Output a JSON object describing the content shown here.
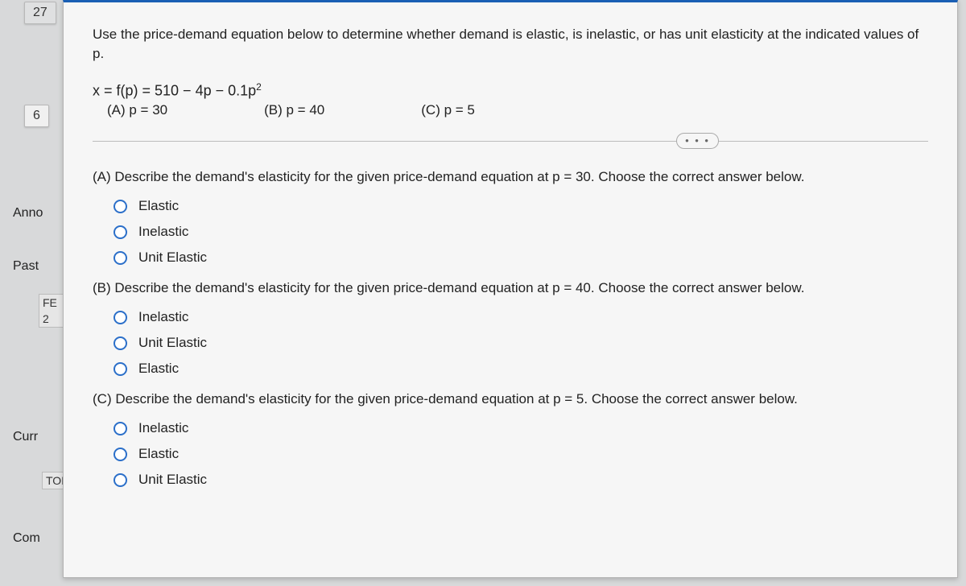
{
  "left": {
    "tab27": "27",
    "tab6": "6",
    "ann": "Anno",
    "past": "Past",
    "fe": "FE",
    "fe2": "2",
    "curr": "Curr",
    "tod": "TOD",
    "com": "Com"
  },
  "main": {
    "prompt": "Use the price-demand equation below to determine whether demand is elastic, is inelastic, or has unit elasticity at the indicated values of p.",
    "equation_prefix": "x = f(p) = 510 − 4p − 0.1p",
    "equation_exp": "2",
    "partA": "(A) p = 30",
    "partB": "(B) p = 40",
    "partC": "(C) p = 5",
    "dots": "• • •"
  },
  "qA": {
    "text": "(A) Describe the demand's elasticity for the given price-demand equation at p = 30. Choose the correct answer below.",
    "o1": "Elastic",
    "o2": "Inelastic",
    "o3": "Unit Elastic"
  },
  "qB": {
    "text": "(B) Describe the demand's elasticity for the given price-demand equation at p = 40. Choose the correct answer below.",
    "o1": "Inelastic",
    "o2": "Unit Elastic",
    "o3": "Elastic"
  },
  "qC": {
    "text": "(C) Describe the demand's elasticity for the given price-demand equation at p = 5. Choose the correct answer below.",
    "o1": "Inelastic",
    "o2": "Elastic",
    "o3": "Unit Elastic"
  }
}
